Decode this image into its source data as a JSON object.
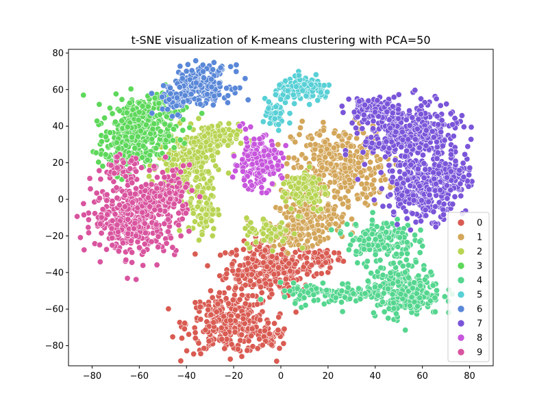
{
  "chart_data": {
    "type": "scatter",
    "title": "t-SNE visualization of K-means clustering with PCA=50",
    "xlabel": "",
    "ylabel": "",
    "xlim": [
      -90,
      90
    ],
    "ylim": [
      -91,
      82
    ],
    "xticks": [
      -80,
      -60,
      -40,
      -20,
      0,
      20,
      40,
      60,
      80
    ],
    "yticks": [
      -80,
      -60,
      -40,
      -20,
      0,
      20,
      40,
      60,
      80
    ],
    "grid": false,
    "legend_position": "lower-right",
    "series": [
      {
        "name": "0",
        "color": "#d95b52",
        "clusters": [
          {
            "cx": -5,
            "cy": -38,
            "sx": 9,
            "sy": 7,
            "n": 300
          },
          {
            "cx": -22,
            "cy": -68,
            "sx": 9,
            "sy": 8,
            "n": 300
          },
          {
            "cx": 18,
            "cy": -32,
            "sx": 4,
            "sy": 3,
            "n": 60
          },
          {
            "cx": -5,
            "cy": -75,
            "sx": 4,
            "sy": 4,
            "n": 40
          }
        ]
      },
      {
        "name": "1",
        "color": "#d3a65a",
        "clusters": [
          {
            "cx": 25,
            "cy": 18,
            "sx": 10,
            "sy": 11,
            "n": 350
          },
          {
            "cx": 12,
            "cy": -12,
            "sx": 7,
            "sy": 6,
            "n": 150
          },
          {
            "cx": 3,
            "cy": -20,
            "sx": 5,
            "sy": 4,
            "n": 40
          }
        ]
      },
      {
        "name": "2",
        "color": "#b8d453",
        "clusters": [
          {
            "cx": -40,
            "cy": 18,
            "sx": 6,
            "sy": 9,
            "n": 200
          },
          {
            "cx": -30,
            "cy": 33,
            "sx": 6,
            "sy": 4,
            "n": 120
          },
          {
            "cx": -33,
            "cy": -5,
            "sx": 3,
            "sy": 8,
            "n": 80
          },
          {
            "cx": 10,
            "cy": 5,
            "sx": 5,
            "sy": 6,
            "n": 100
          },
          {
            "cx": -5,
            "cy": -18,
            "sx": 5,
            "sy": 4,
            "n": 60
          }
        ]
      },
      {
        "name": "3",
        "color": "#5ed85b",
        "clusters": [
          {
            "cx": -60,
            "cy": 38,
            "sx": 7,
            "sy": 9,
            "n": 300
          },
          {
            "cx": -70,
            "cy": 25,
            "sx": 4,
            "sy": 5,
            "n": 60
          },
          {
            "cx": -50,
            "cy": 52,
            "sx": 5,
            "sy": 5,
            "n": 60
          }
        ]
      },
      {
        "name": "4",
        "color": "#55d68f",
        "clusters": [
          {
            "cx": 52,
            "cy": -50,
            "sx": 8,
            "sy": 7,
            "n": 280
          },
          {
            "cx": 42,
            "cy": -22,
            "sx": 7,
            "sy": 6,
            "n": 150
          },
          {
            "cx": 20,
            "cy": -52,
            "sx": 10,
            "sy": 3,
            "n": 100
          }
        ]
      },
      {
        "name": "5",
        "color": "#58d0d6",
        "clusters": [
          {
            "cx": 10,
            "cy": 60,
            "sx": 6,
            "sy": 3,
            "n": 140
          },
          {
            "cx": -3,
            "cy": 45,
            "sx": 3,
            "sy": 5,
            "n": 40
          }
        ]
      },
      {
        "name": "6",
        "color": "#5a88d8",
        "clusters": [
          {
            "cx": -33,
            "cy": 63,
            "sx": 6,
            "sy": 5,
            "n": 200
          },
          {
            "cx": -45,
            "cy": 55,
            "sx": 4,
            "sy": 4,
            "n": 50
          }
        ]
      },
      {
        "name": "7",
        "color": "#7a55d9",
        "clusters": [
          {
            "cx": 55,
            "cy": 35,
            "sx": 10,
            "sy": 9,
            "n": 400
          },
          {
            "cx": 60,
            "cy": 5,
            "sx": 8,
            "sy": 8,
            "n": 250
          },
          {
            "cx": 72,
            "cy": 15,
            "sx": 4,
            "sy": 6,
            "n": 80
          },
          {
            "cx": 38,
            "cy": 50,
            "sx": 5,
            "sy": 3,
            "n": 80
          }
        ]
      },
      {
        "name": "8",
        "color": "#c756dd",
        "clusters": [
          {
            "cx": -10,
            "cy": 20,
            "sx": 5,
            "sy": 7,
            "n": 180
          }
        ]
      },
      {
        "name": "9",
        "color": "#d9549f",
        "clusters": [
          {
            "cx": -62,
            "cy": -10,
            "sx": 9,
            "sy": 10,
            "n": 400
          },
          {
            "cx": -48,
            "cy": 2,
            "sx": 5,
            "sy": 8,
            "n": 120
          },
          {
            "cx": -68,
            "cy": 17,
            "sx": 4,
            "sy": 3,
            "n": 40
          }
        ]
      }
    ]
  }
}
